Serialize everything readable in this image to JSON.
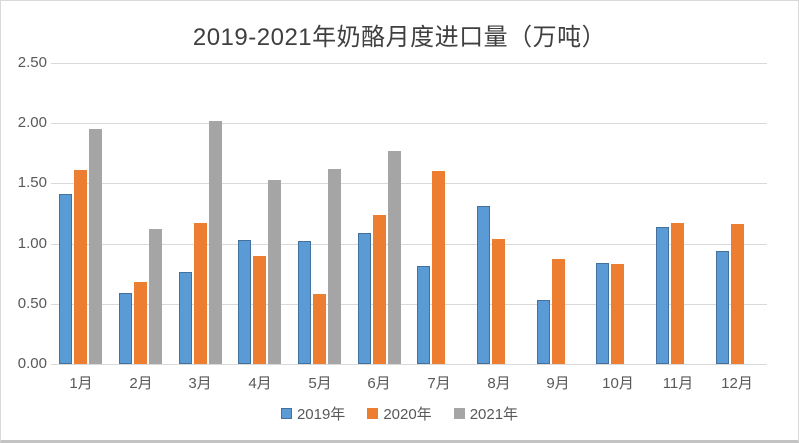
{
  "title": "2019-2021年奶酪月度进口量（万吨）",
  "colors": {
    "series_2019_fill": "#5b9bd5",
    "series_2019_border": "#41719c",
    "series_2020_fill": "#ed7d31",
    "series_2021_fill": "#a5a5a5",
    "gridline": "#d9d9d9",
    "axis_text": "#595959",
    "title_text": "#3f3f3f",
    "frame_border": "#d9d9d9"
  },
  "chart_data": {
    "type": "bar",
    "title": "2019-2021年奶酪月度进口量（万吨）",
    "categories": [
      "1月",
      "2月",
      "3月",
      "4月",
      "5月",
      "6月",
      "7月",
      "8月",
      "9月",
      "10月",
      "11月",
      "12月"
    ],
    "series": [
      {
        "name": "2019年",
        "color": "#5b9bd5",
        "values": [
          1.41,
          0.59,
          0.76,
          1.03,
          1.02,
          1.09,
          0.81,
          1.31,
          0.53,
          0.84,
          1.14,
          0.94
        ]
      },
      {
        "name": "2020年",
        "color": "#ed7d31",
        "values": [
          1.61,
          0.68,
          1.17,
          0.9,
          0.58,
          1.24,
          1.6,
          1.04,
          0.87,
          0.83,
          1.17,
          1.16
        ]
      },
      {
        "name": "2021年",
        "color": "#a5a5a5",
        "values": [
          1.95,
          1.12,
          2.02,
          1.53,
          1.62,
          1.77,
          null,
          null,
          null,
          null,
          null,
          null
        ]
      }
    ],
    "xlabel": "",
    "ylabel": "",
    "ylim": [
      0,
      2.5
    ],
    "yticks": [
      "0.00",
      "0.50",
      "1.00",
      "1.50",
      "2.00",
      "2.50"
    ],
    "grid": true,
    "legend_position": "bottom"
  }
}
